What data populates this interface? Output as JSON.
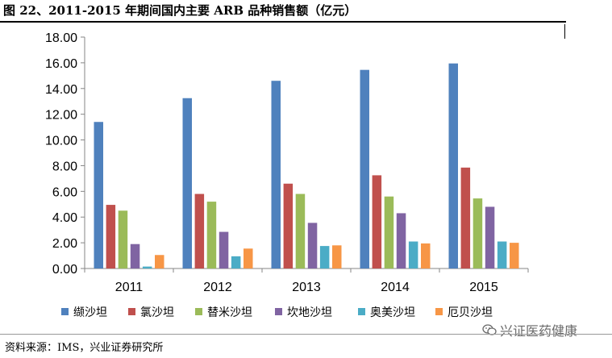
{
  "figure": {
    "title": "图 22、2011-2015 年期间国内主要 ARB 品种销售额（亿元）",
    "source": "资料来源：IMS，兴业证券研究所",
    "watermark": "兴证医药健康"
  },
  "chart_data": {
    "type": "bar",
    "categories": [
      "2011",
      "2012",
      "2013",
      "2014",
      "2015"
    ],
    "series": [
      {
        "name": "缬沙坦",
        "color": "#4F81BD",
        "values": [
          11.4,
          13.25,
          14.6,
          15.45,
          15.95
        ]
      },
      {
        "name": "氯沙坦",
        "color": "#C0504D",
        "values": [
          4.95,
          5.8,
          6.6,
          7.25,
          7.85
        ]
      },
      {
        "name": "替米沙坦",
        "color": "#9BBB59",
        "values": [
          4.5,
          5.2,
          5.8,
          5.6,
          5.45
        ]
      },
      {
        "name": "坎地沙坦",
        "color": "#8064A2",
        "values": [
          1.9,
          2.85,
          3.55,
          4.3,
          4.8
        ]
      },
      {
        "name": "奥美沙坦",
        "color": "#4BACC6",
        "values": [
          0.15,
          0.95,
          1.75,
          2.1,
          2.1
        ]
      },
      {
        "name": "厄贝沙坦",
        "color": "#F79646",
        "values": [
          1.05,
          1.55,
          1.8,
          1.95,
          2.0
        ]
      }
    ],
    "yticks": [
      "0.00",
      "2.00",
      "4.00",
      "6.00",
      "8.00",
      "10.00",
      "12.00",
      "14.00",
      "16.00",
      "18.00"
    ],
    "ylim": [
      0,
      18
    ],
    "legend_position": "bottom",
    "grid": false
  }
}
